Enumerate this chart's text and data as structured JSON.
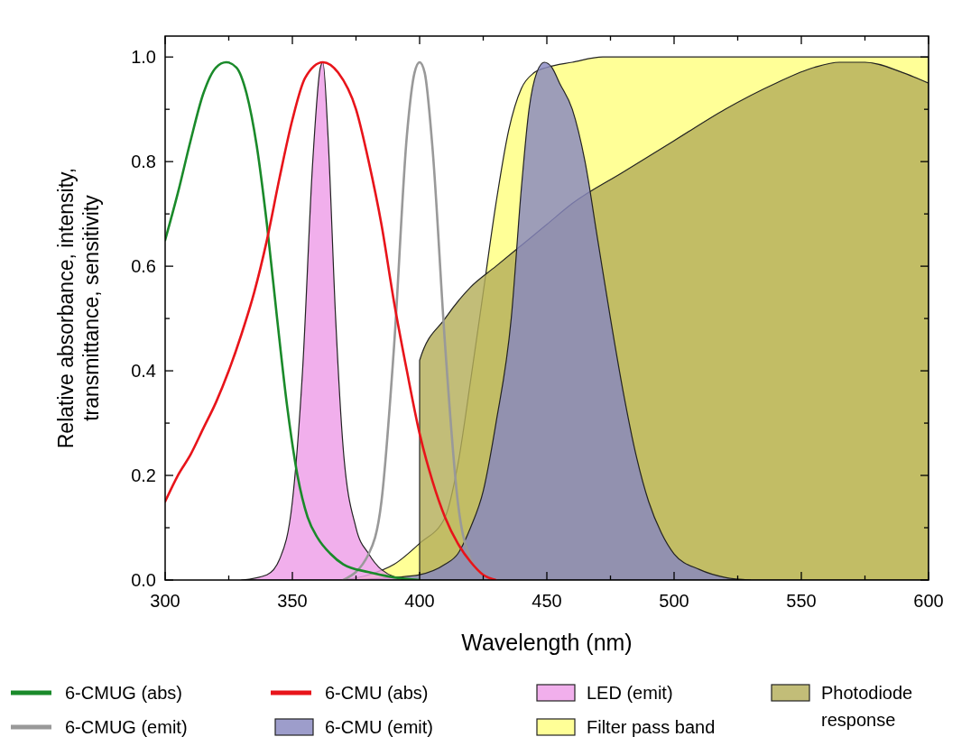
{
  "chart_data": {
    "type": "line",
    "xlabel": "Wavelength (nm)",
    "ylabel": "Relative absorbance, intensity, transmittance, sensitivity",
    "xlim": [
      300,
      600
    ],
    "ylim": [
      0,
      1.04
    ],
    "xticks": [
      300,
      {
        "value": 325,
        "label": null
      },
      350,
      {
        "value": 375,
        "label": null
      },
      400,
      {
        "value": 425,
        "label": null
      },
      450,
      {
        "value": 475,
        "label": null
      },
      500,
      {
        "value": 525,
        "label": null
      },
      550,
      {
        "value": 575,
        "label": null
      },
      600
    ],
    "yticks": [
      {
        "value": 0,
        "label": "0.0"
      },
      {
        "value": 0.1,
        "label": null
      },
      {
        "value": 0.2,
        "label": "0.2"
      },
      {
        "value": 0.3,
        "label": null
      },
      {
        "value": 0.4,
        "label": "0.4"
      },
      {
        "value": 0.5,
        "label": null
      },
      {
        "value": 0.6,
        "label": "0.6"
      },
      {
        "value": 0.7,
        "label": null
      },
      {
        "value": 0.8,
        "label": "0.8"
      },
      {
        "value": 0.9,
        "label": null
      },
      {
        "value": 1,
        "label": "1.0"
      }
    ],
    "grid": false,
    "legend": "bottom",
    "series": [
      {
        "name": "Filter pass band",
        "type": "area",
        "color": "#ffff80",
        "x": [
          370,
          380,
          390,
          400,
          410,
          415,
          420,
          425,
          430,
          435,
          440,
          445,
          450,
          460,
          472,
          600
        ],
        "values": [
          0,
          0.01,
          0.03,
          0.07,
          0.12,
          0.22,
          0.38,
          0.55,
          0.72,
          0.86,
          0.94,
          0.97,
          0.98,
          0.99,
          1,
          1
        ]
      },
      {
        "name": "Photodiode response",
        "type": "area",
        "color": "#b4ae5a",
        "x": [
          400,
          400,
          410,
          420,
          430,
          440,
          450,
          460,
          480,
          500,
          520,
          540,
          555,
          565,
          575,
          590,
          600
        ],
        "values": [
          0,
          0.42,
          0.5,
          0.56,
          0.6,
          0.64,
          0.68,
          0.72,
          0.78,
          0.84,
          0.9,
          0.95,
          0.98,
          0.99,
          0.99,
          0.97,
          0.95
        ]
      },
      {
        "name": "6-CMU (emit)",
        "type": "area",
        "color": "#8888c0",
        "x": [
          370,
          390,
          400,
          410,
          415,
          420,
          425,
          430,
          436,
          440,
          443,
          446,
          449,
          452,
          455,
          460,
          465,
          470,
          475,
          480,
          485,
          490,
          495,
          500,
          510,
          520,
          530
        ],
        "values": [
          0,
          0.005,
          0.01,
          0.03,
          0.05,
          0.1,
          0.17,
          0.3,
          0.5,
          0.75,
          0.9,
          0.97,
          0.99,
          0.98,
          0.95,
          0.9,
          0.8,
          0.65,
          0.5,
          0.36,
          0.24,
          0.15,
          0.09,
          0.05,
          0.02,
          0.005,
          0
        ]
      },
      {
        "name": "LED (emit)",
        "type": "area",
        "color": "#ee9ee8",
        "x": [
          330,
          340,
          345,
          350,
          354,
          358,
          361,
          362,
          364,
          367,
          370,
          375,
          380,
          385,
          395
        ],
        "values": [
          0,
          0.01,
          0.04,
          0.15,
          0.4,
          0.8,
          0.98,
          0.99,
          0.85,
          0.5,
          0.25,
          0.1,
          0.05,
          0.02,
          0
        ]
      },
      {
        "name": "6-CMUG (emit)",
        "color": "#999999",
        "x": [
          370,
          380,
          385,
          390,
          395,
          398,
          400,
          402,
          405,
          410,
          415,
          420,
          425,
          430
        ],
        "values": [
          0,
          0.05,
          0.15,
          0.45,
          0.85,
          0.97,
          0.99,
          0.97,
          0.83,
          0.45,
          0.15,
          0.04,
          0.01,
          0
        ]
      },
      {
        "name": "6-CMUG (abs)",
        "color": "#1a8a2a",
        "x": [
          300,
          305,
          310,
          315,
          320,
          324,
          328,
          332,
          336,
          340,
          344,
          348,
          352,
          356,
          360,
          365,
          370,
          380,
          390,
          400
        ],
        "values": [
          0.65,
          0.74,
          0.84,
          0.93,
          0.98,
          0.99,
          0.98,
          0.93,
          0.83,
          0.68,
          0.5,
          0.33,
          0.2,
          0.12,
          0.08,
          0.05,
          0.03,
          0.015,
          0.005,
          0
        ]
      },
      {
        "name": "6-CMU (abs)",
        "color": "#e8141a",
        "x": [
          300,
          305,
          310,
          315,
          320,
          325,
          330,
          335,
          340,
          345,
          350,
          355,
          362,
          368,
          375,
          380,
          385,
          390,
          395,
          400,
          405,
          410,
          415,
          420,
          425,
          430
        ],
        "values": [
          0.15,
          0.2,
          0.24,
          0.29,
          0.34,
          0.4,
          0.47,
          0.55,
          0.65,
          0.77,
          0.88,
          0.96,
          0.99,
          0.97,
          0.9,
          0.8,
          0.68,
          0.53,
          0.4,
          0.28,
          0.19,
          0.12,
          0.07,
          0.035,
          0.01,
          0
        ]
      }
    ]
  }
}
